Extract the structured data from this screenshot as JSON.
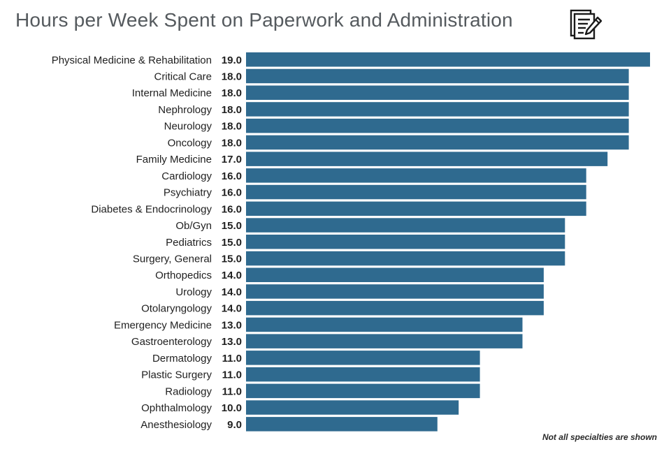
{
  "chart_data": {
    "type": "bar",
    "orientation": "horizontal",
    "title": "Hours per Week Spent on Paperwork and Administration",
    "categories": [
      "Physical Medicine & Rehabilitation",
      "Critical Care",
      "Internal Medicine",
      "Nephrology",
      "Neurology",
      "Oncology",
      "Family Medicine",
      "Cardiology",
      "Psychiatry",
      "Diabetes & Endocrinology",
      "Ob/Gyn",
      "Pediatrics",
      "Surgery, General",
      "Orthopedics",
      "Urology",
      "Otolaryngology",
      "Emergency Medicine",
      "Gastroenterology",
      "Dermatology",
      "Plastic Surgery",
      "Radiology",
      "Ophthalmology",
      "Anesthesiology"
    ],
    "values": [
      19,
      18,
      18,
      18,
      18,
      18,
      17,
      16,
      16,
      16,
      15,
      15,
      15,
      14,
      14,
      14,
      13,
      13,
      11,
      11,
      11,
      10,
      9
    ],
    "value_labels": [
      "19.0",
      "18.0",
      "18.0",
      "18.0",
      "18.0",
      "18.0",
      "17.0",
      "16.0",
      "16.0",
      "16.0",
      "15.0",
      "15.0",
      "15.0",
      "14.0",
      "14.0",
      "14.0",
      "13.0",
      "13.0",
      "11.0",
      "11.0",
      "11.0",
      "10.0",
      "9.0"
    ],
    "xlim": [
      0,
      19
    ],
    "bar_color": "#2f6a8f",
    "grid": false,
    "legend": "none",
    "footnote": "Not all specialties are shown"
  },
  "icon": "document-pen-icon"
}
